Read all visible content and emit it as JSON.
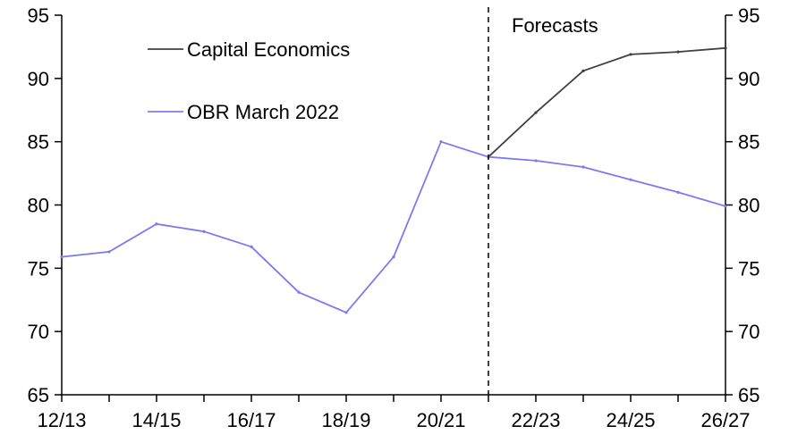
{
  "chart_data": {
    "type": "line",
    "title": "",
    "xlabel": "",
    "ylabel": "",
    "x_categories": [
      "12/13",
      "13/14",
      "14/15",
      "15/16",
      "16/17",
      "17/18",
      "18/19",
      "19/20",
      "20/21",
      "21/22",
      "22/23",
      "23/24",
      "24/25",
      "25/26",
      "26/27"
    ],
    "x_tick_labels": [
      "12/13",
      "14/15",
      "16/17",
      "18/19",
      "20/21",
      "22/23",
      "24/25",
      "26/27"
    ],
    "ylim": [
      65,
      95
    ],
    "y_ticks": [
      65,
      70,
      75,
      80,
      85,
      90,
      95
    ],
    "y_axis_left": true,
    "y_axis_right": true,
    "grid": false,
    "legend_position": "top-left",
    "annotations": [
      {
        "text": "Forecasts",
        "at_x": "21/22",
        "style": "dashed-vertical-line"
      }
    ],
    "series": [
      {
        "name": "Capital Economics",
        "color": "#404040",
        "x": [
          "21/22",
          "22/23",
          "23/24",
          "24/25",
          "25/26",
          "26/27"
        ],
        "values": [
          83.8,
          87.3,
          90.6,
          91.9,
          92.1,
          92.4
        ]
      },
      {
        "name": "OBR March 2022",
        "color": "#7b7bef",
        "x": [
          "12/13",
          "13/14",
          "14/15",
          "15/16",
          "16/17",
          "17/18",
          "18/19",
          "19/20",
          "20/21",
          "21/22",
          "22/23",
          "23/24",
          "24/25",
          "25/26",
          "26/27"
        ],
        "values": [
          75.9,
          76.3,
          78.5,
          77.9,
          76.7,
          73.1,
          71.5,
          75.9,
          85.0,
          83.8,
          83.5,
          83.0,
          82.0,
          81.0,
          79.9
        ]
      }
    ]
  }
}
